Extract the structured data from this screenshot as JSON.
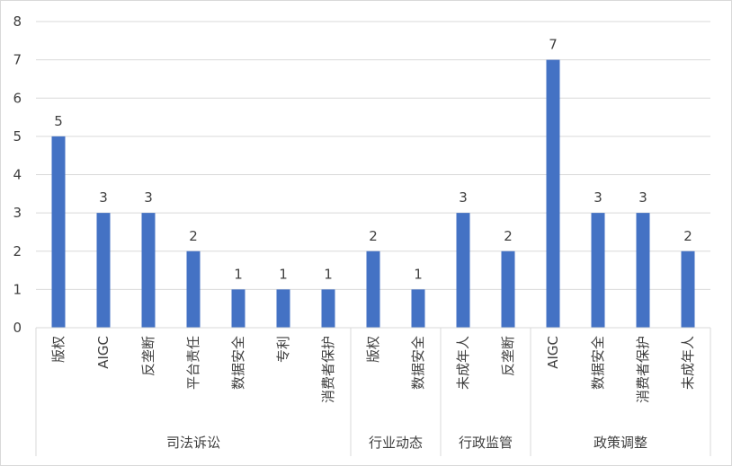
{
  "chart_data": {
    "type": "bar",
    "title": "",
    "xlabel": "",
    "ylabel": "",
    "ylim": [
      0,
      8
    ],
    "yticks": [
      0,
      1,
      2,
      3,
      4,
      5,
      6,
      7,
      8
    ],
    "grid": true,
    "bar_color": "#4472c4",
    "gridline_color": "#d9d9d9",
    "groups": [
      {
        "name": "司法诉讼",
        "categories": [
          "版权",
          "AIGC",
          "反垄断",
          "平台责任",
          "数据安全",
          "专利",
          "消费者保护"
        ],
        "values": [
          5,
          3,
          3,
          2,
          1,
          1,
          1
        ]
      },
      {
        "name": "行业动态",
        "categories": [
          "版权",
          "数据安全"
        ],
        "values": [
          2,
          1
        ]
      },
      {
        "name": "行政监管",
        "categories": [
          "未成年人",
          "反垄断"
        ],
        "values": [
          3,
          2
        ]
      },
      {
        "name": "政策调整",
        "categories": [
          "AIGC",
          "数据安全",
          "消费者保护",
          "未成年人"
        ],
        "values": [
          7,
          3,
          3,
          2
        ]
      }
    ]
  }
}
